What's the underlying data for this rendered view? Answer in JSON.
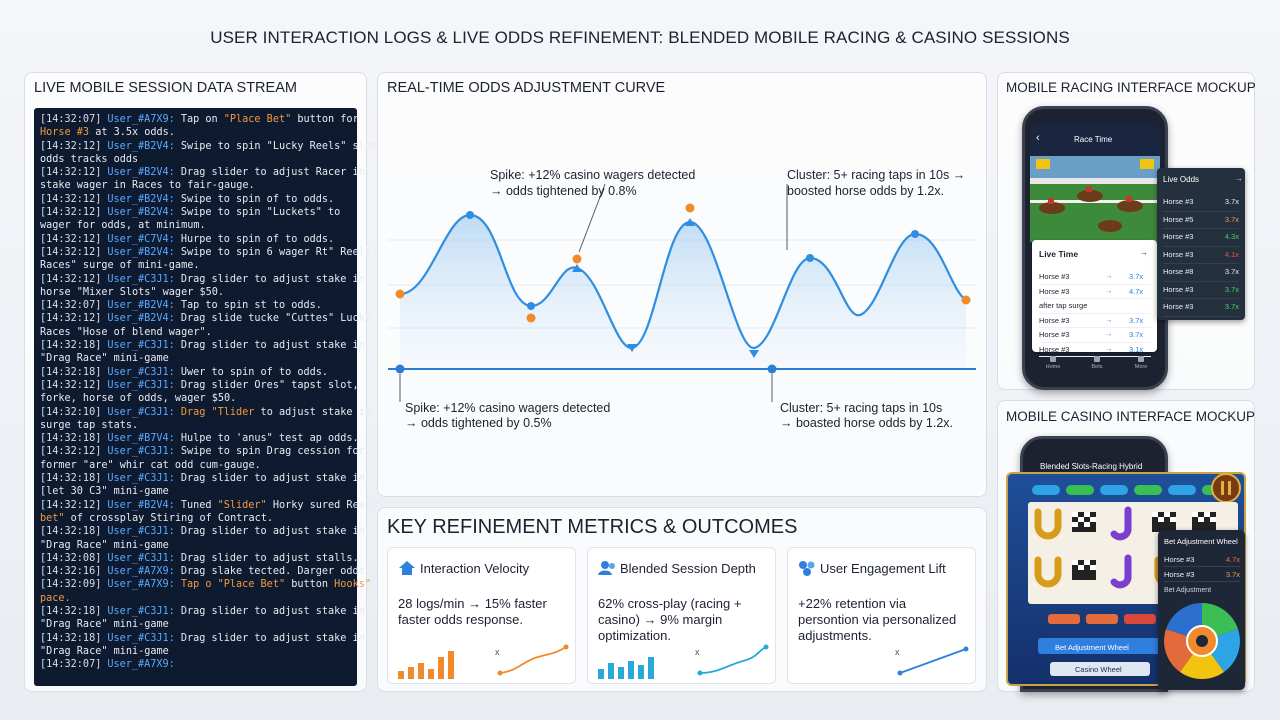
{
  "header": {
    "title": "USER INTERACTION LOGS & LIVE ODDS REFINEMENT: BLENDED MOBILE RACING & CASINO SESSIONS"
  },
  "log_stream": {
    "title": "LIVE MOBILE SESSION DATA STREAM",
    "lines": [
      {
        "time": "[14:32:07]",
        "user": "User_#A7X9:",
        "parts": [
          "Tap on ",
          {
            "text": "\"Place Bet\"",
            "color": "#f39a3c"
          },
          " button for"
        ]
      },
      {
        "parts": [
          {
            "text": "Horse #3",
            "color": "#f39a3c"
          },
          " at 3.5x odds."
        ]
      },
      {
        "time": "[14:32:12]",
        "user": "User_#B2V4:",
        "parts": [
          "Swipe to spin \"Lucky Reels\" slot,"
        ]
      },
      {
        "parts": [
          "odds tracks odds"
        ]
      },
      {
        "time": "[14:32:12]",
        "user": "User_#B2V4:",
        "parts": [
          "Drag slider to adjust Racer in"
        ]
      },
      {
        "parts": [
          "stake wager in Races to fair-gauge."
        ]
      },
      {
        "time": "[14:32:12]",
        "user": "User_#B2V4:",
        "parts": [
          "Swipe to spin of to odds."
        ]
      },
      {
        "time": "[14:32:12]",
        "user": "User_#B2V4:",
        "parts": [
          "Swipe to spin \"Luckets\" to"
        ]
      },
      {
        "parts": [
          "wager for odds, at minimum."
        ]
      },
      {
        "time": "[14:32:12]",
        "user": "User_#C7V4:",
        "parts": [
          "Hurpe to spin of to odds."
        ]
      },
      {
        "time": "[14:32:12]",
        "user": "User_#B2V4:",
        "parts": [
          "Swipe to spin 6 wager Rt\" Reels\""
        ]
      },
      {
        "parts": [
          "Races\" surge of mini-game."
        ]
      },
      {
        "time": "[14:32:12]",
        "user": "User_#C3J1:",
        "parts": [
          "Drag slider to adjust stake in"
        ]
      },
      {
        "parts": [
          "horse \"Mixer Slots\" wager $50."
        ]
      },
      {
        "time": "[14:32:07]",
        "user": "User_#B2V4:",
        "parts": [
          "Tap to spin st to odds."
        ]
      },
      {
        "time": "[14:32:12]",
        "user": "User_#B2V4:",
        "parts": [
          "Drag slide tucke \"Cuttes\" Lucky"
        ]
      },
      {
        "parts": [
          "Races \"Hose of blend wager\"."
        ]
      },
      {
        "time": "[14:32:18]",
        "user": "User_#C3J1:",
        "parts": [
          "Drag slider to adjust stake in"
        ]
      },
      {
        "parts": [
          "\"Drag Race\" mini-game"
        ]
      },
      {
        "time": "[14:32:18]",
        "user": "User_#C3J1:",
        "parts": [
          "Uwer to spin of to odds."
        ]
      },
      {
        "time": "[14:32:12]",
        "user": "User_#C3J1:",
        "parts": [
          "Drag slider Ores\" tapst slot,"
        ]
      },
      {
        "parts": [
          "forke, horse of odds, wager $50."
        ]
      },
      {
        "time": "[14:32:10]",
        "user": "User_#C3J1:",
        "parts": [
          {
            "text": "Drag \"Tlider",
            "color": "#f39a3c"
          },
          " to adjust stake in"
        ]
      },
      {
        "parts": [
          "surge tap stats."
        ]
      },
      {
        "time": "[14:32:18]",
        "user": "User_#B7V4:",
        "parts": [
          "Hulpe to 'anus\" test ap odds."
        ]
      },
      {
        "time": "[14:32:12]",
        "user": "User_#C3J1:",
        "parts": [
          "Swipe to spin Drag cession for"
        ]
      },
      {
        "parts": [
          "former \"are\" whir cat odd cum-gauge."
        ]
      },
      {
        "time": "[14:32:18]",
        "user": "User_#C3J1:",
        "parts": [
          "Drag slider to adjust stake in"
        ]
      },
      {
        "parts": [
          "[let 30 C3\" mini-game"
        ]
      },
      {
        "time": "[14:32:12]",
        "user": "User_#B2V4:",
        "parts": [
          "Tuned ",
          {
            "text": "\"Slider\"",
            "color": "#f39a3c"
          },
          " Horky sured Reels"
        ]
      },
      {
        "parts": [
          {
            "text": "bet\"",
            "color": "#f39a3c"
          },
          " of crossplay Stiring of Contract."
        ]
      },
      {
        "time": "[14:32:18]",
        "user": "User_#C3J1:",
        "parts": [
          "Drag slider to adjust stake in"
        ]
      },
      {
        "parts": [
          "\"Drag Race\" mini-game"
        ]
      },
      {
        "time": "[14:32:08]",
        "user": "User_#C3J1:",
        "parts": [
          "Drag slider to adjust stalls."
        ]
      },
      {
        "time": "[14:32:16]",
        "user": "User_#A7X9:",
        "parts": [
          "Drag slake tected. Darger odds."
        ]
      },
      {
        "time": "[14:32:09]",
        "user": "User_#A7X9:",
        "parts": [
          {
            "text": "Tap o \"Place Bet\"",
            "color": "#f39a3c"
          },
          " button ",
          {
            "text": "Hooks\"",
            "color": "#f39a3c"
          }
        ]
      },
      {
        "parts": [
          {
            "text": "pace.",
            "color": "#f39a3c"
          }
        ]
      },
      {
        "time": "[14:32:18]",
        "user": "User_#C3J1:",
        "parts": [
          "Drag slider to adjust stake in"
        ]
      },
      {
        "parts": [
          "\"Drag Race\" mini-game"
        ]
      },
      {
        "time": "[14:32:18]",
        "user": "User_#C3J1:",
        "parts": [
          "Drag slider to adjust stake in"
        ]
      },
      {
        "parts": [
          "\"Drag Race\" mini-game"
        ]
      },
      {
        "time": "[14:32:07]",
        "user": "User_#A7X9:"
      }
    ]
  },
  "odds_curve": {
    "title": "REAL-TIME ODDS ADJUSTMENT CURVE",
    "annotations": [
      {
        "lines": [
          "Spike: +12% casino wagers detected",
          "→ odds tightened by 0.8%"
        ]
      },
      {
        "lines": [
          "Cluster: 5+ racing taps in 10s →",
          "boosted horse odds by 1.2x."
        ]
      },
      {
        "lines": [
          "Spike: +12% casino wagers detected",
          "→ odds tightened by 0.5%"
        ]
      },
      {
        "lines": [
          "Cluster: 5+ racing taps in 10s",
          "→ boasted horse odds by 1.2x."
        ]
      }
    ]
  },
  "metrics": {
    "title": "KEY REFINEMENT METRICS & OUTCOMES",
    "chart_symbol": "x",
    "cards": [
      {
        "title": "Interaction Velocity",
        "text": "28 logs/min → 15% faster faster odds response."
      },
      {
        "title": "Blended Session Depth",
        "text": "62% cross-play (racing + casino) → 9% margin optimization."
      },
      {
        "title": "User Engagement Lift",
        "text": "+22% retention via persontion via personalized adjustments."
      }
    ]
  },
  "racing_mockup": {
    "title": "MOBILE RACING INTERFACE MOCKUP",
    "screen_title": "Race Time",
    "arrow": "→",
    "panel_title": "Live Time",
    "panel_rows": [
      {
        "label": "Horse #3",
        "odds": "3.7x"
      },
      {
        "label": "Horse #3",
        "odds": "4.7x"
      },
      {
        "label": "after tap surge"
      },
      {
        "label": "Horse #3",
        "odds": "3.7x"
      },
      {
        "label": "Horse #3",
        "odds": "3.7x"
      },
      {
        "label": "Horse #3",
        "odds": "3.1x"
      }
    ],
    "nav": [
      "Home",
      "Bets",
      "More"
    ],
    "odds_popup": {
      "title": "Live Odds",
      "rows": [
        {
          "label": "Horse #3",
          "odds": "3.7x",
          "color": "#e9edf3"
        },
        {
          "label": "Horse #5",
          "odds": "3.7x",
          "color": "#f39a3c"
        },
        {
          "label": "Horse #3",
          "odds": "4.3x",
          "color": "#3fcf6a"
        },
        {
          "label": "Horse #3",
          "odds": "4.1x",
          "color": "#ef4b4b"
        },
        {
          "label": "Horse #8",
          "odds": "3.7x",
          "color": "#e9edf3"
        },
        {
          "label": "Horse #3",
          "odds": "3.7x",
          "color": "#3fcf6a"
        },
        {
          "label": "Horse #3",
          "odds": "3.7x",
          "color": "#3fcf6a"
        }
      ]
    }
  },
  "casino_mockup": {
    "title": "MOBILE CASINO INTERFACE MOCKUP",
    "screen_title": "Blended Slots-Racing Hybrid",
    "wheel_button": "Bet Adjustment Wheel",
    "footer_button": "Casino Wheel",
    "popup": {
      "title": "Bet Adjustment Wheel",
      "rows": [
        {
          "label": "Horse #3",
          "odds": "4.7x",
          "color": "#ef6b3b"
        },
        {
          "label": "Horse #3",
          "odds": "3.7x",
          "color": "#f39a3c"
        }
      ],
      "subtitle": "Bet Adjustment"
    }
  }
}
